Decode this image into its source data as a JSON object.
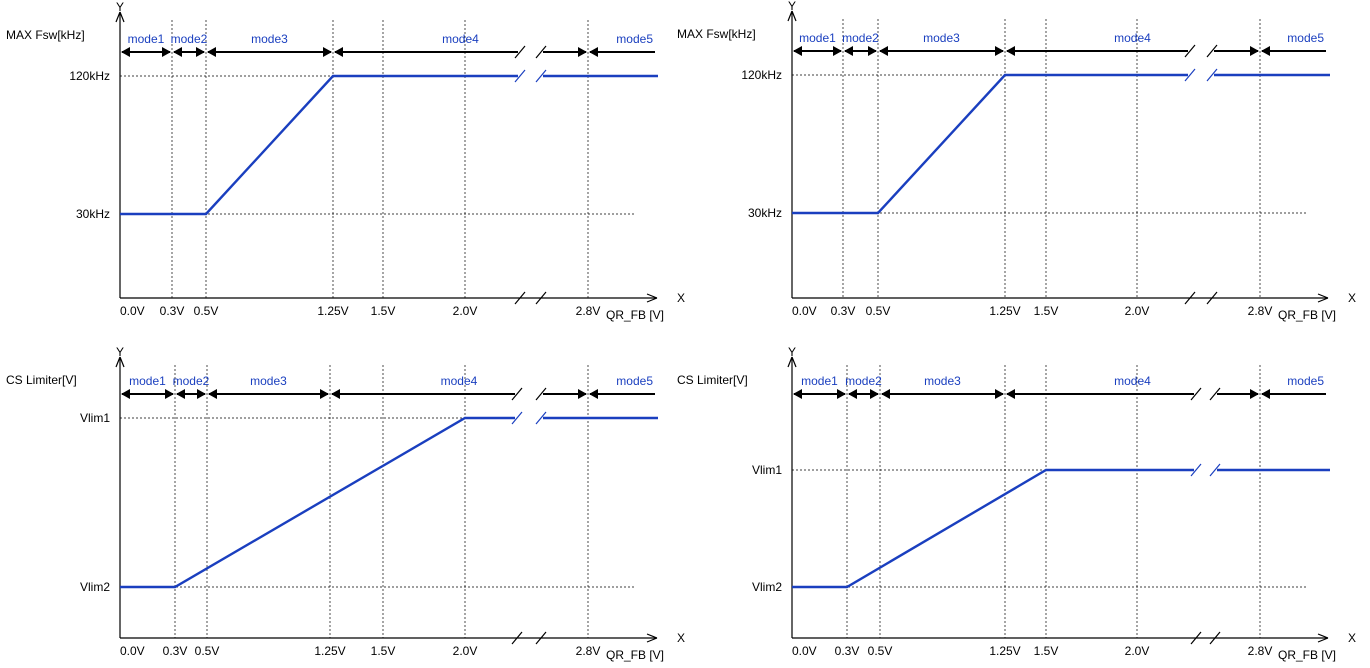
{
  "colors": {
    "curve": "#1a3fbf",
    "mode_text": "#1a3fbf",
    "axis": "#000000",
    "grid": "#000000"
  },
  "axis_names": {
    "y": "Y",
    "x": "X",
    "x_unit": "QR_FB [V]"
  },
  "x_ticks": [
    "0.0V",
    "0.3V",
    "0.5V",
    "1.25V",
    "1.5V",
    "2.0V",
    "2.8V"
  ],
  "x_tick_values": [
    0.0,
    0.3,
    0.5,
    1.25,
    1.5,
    2.0,
    2.8
  ],
  "modes": [
    "mode1",
    "mode2",
    "mode3",
    "mode4",
    "mode5"
  ],
  "panels": [
    {
      "id": "fsw-a",
      "ylabel": "MAX  Fsw[kHz]",
      "levels": [
        "30kHz",
        "120kHz"
      ],
      "points": [
        {
          "x": 0.0,
          "level": 0
        },
        {
          "x": 0.5,
          "level": 0
        },
        {
          "x": 1.25,
          "level": 1
        },
        {
          "x": 2.8,
          "level": 1
        }
      ]
    },
    {
      "id": "fsw-b",
      "ylabel": "MAX  Fsw[kHz]",
      "levels": [
        "30kHz",
        "120kHz"
      ],
      "points": [
        {
          "x": 0.0,
          "level": 0
        },
        {
          "x": 0.5,
          "level": 0
        },
        {
          "x": 1.25,
          "level": 1
        },
        {
          "x": 2.8,
          "level": 1
        }
      ]
    },
    {
      "id": "cs-a",
      "ylabel": "CS   Limiter[V]",
      "levels": [
        "Vlim2",
        "Vlim1"
      ],
      "points": [
        {
          "x": 0.0,
          "level": 0
        },
        {
          "x": 0.3,
          "level": 0
        },
        {
          "x": 2.0,
          "level": 1
        },
        {
          "x": 2.8,
          "level": 1
        }
      ]
    },
    {
      "id": "cs-b",
      "ylabel": "CS   Limiter[V]",
      "levels": [
        "Vlim2",
        "Vlim1"
      ],
      "points": [
        {
          "x": 0.0,
          "level": 0
        },
        {
          "x": 0.3,
          "level": 0
        },
        {
          "x": 1.5,
          "level": 1
        },
        {
          "x": 2.8,
          "level": 1
        }
      ]
    }
  ]
}
